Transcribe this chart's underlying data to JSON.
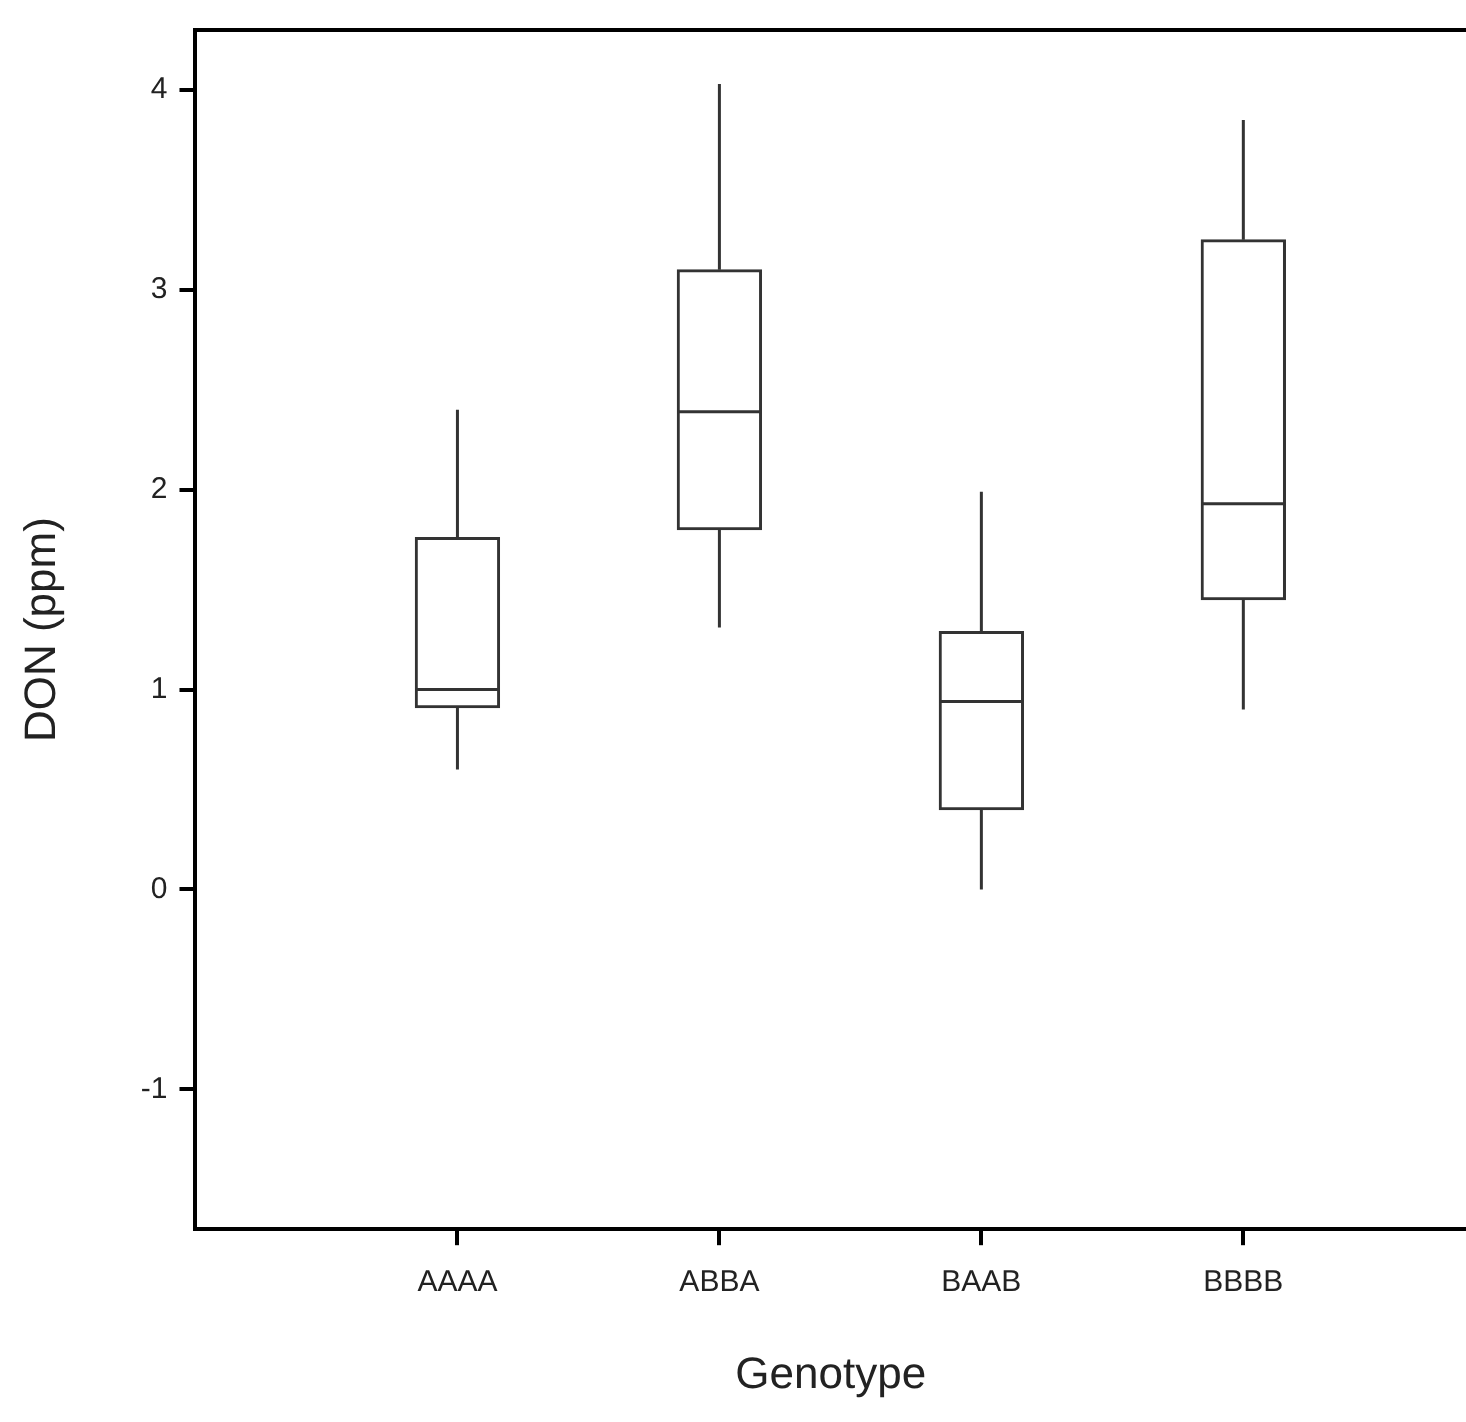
{
  "chart_data": {
    "type": "box",
    "xlabel": "Genotype",
    "ylabel": "DON (ppm)",
    "categories": [
      "AAAA",
      "ABBA",
      "BAAB",
      "BBBB"
    ],
    "boxes": [
      {
        "low": 0.6,
        "q1": 0.91,
        "median": 1.0,
        "q3": 1.76,
        "high": 2.4
      },
      {
        "low": 1.31,
        "q1": 1.8,
        "median": 2.39,
        "q3": 3.1,
        "high": 4.03
      },
      {
        "low": 0.0,
        "q1": 0.4,
        "median": 0.94,
        "q3": 1.29,
        "high": 1.99
      },
      {
        "low": 0.9,
        "q1": 1.45,
        "median": 1.93,
        "q3": 3.25,
        "high": 3.85
      }
    ],
    "color": "#333333",
    "ylim": [
      -1.7,
      4.3
    ],
    "yticks": [
      -1,
      0,
      1,
      2,
      3,
      4
    ],
    "grid": false
  }
}
